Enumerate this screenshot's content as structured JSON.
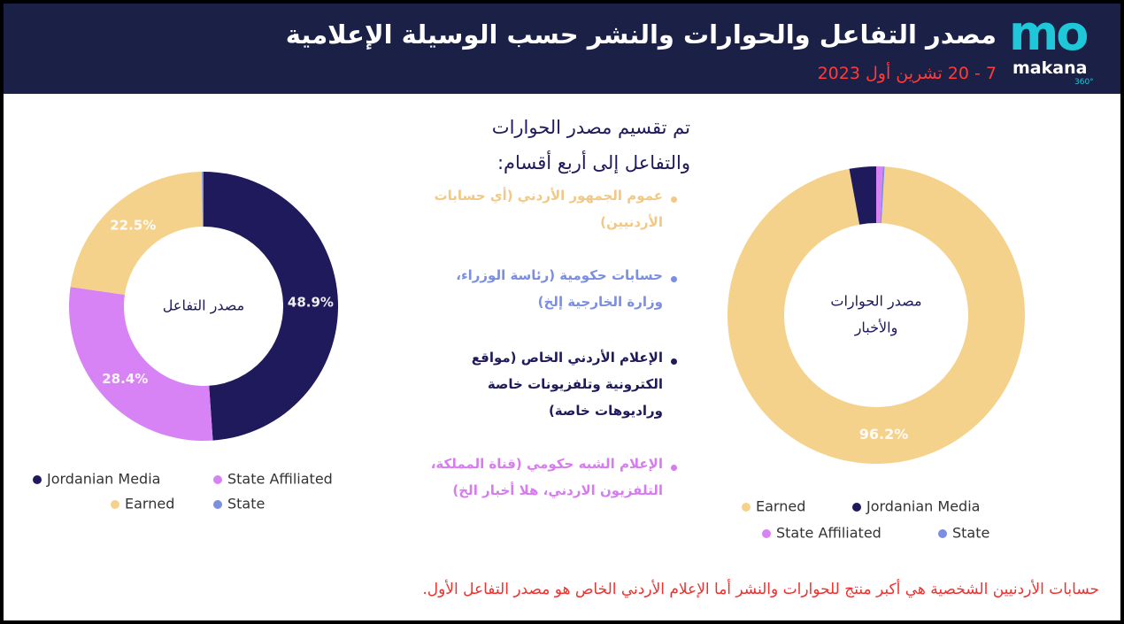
{
  "header": {
    "title": "مصدر التفاعل والحوارات والنشر حسب الوسيلة الإعلامية",
    "date": "7 - 20 تشرين أول 2023",
    "logo": "mo",
    "logo_name": "makana",
    "logo_sub": "360°"
  },
  "intro": {
    "heading": [
      "تم تقسيم مصدر الحوارات",
      "والتفاعل إلى أربع أقسام:"
    ],
    "bullets": [
      {
        "color": "#f1c886",
        "lines": [
          "عموم الجمهور الأردني (أي حسابات",
          "الأردنيين)"
        ]
      },
      {
        "color": "#7b8ee0",
        "lines": [
          "حسابات حكومية (رئاسة الوزراء،",
          "وزارة الخارجية إلخ)"
        ]
      },
      {
        "color": "#1e1a5c",
        "lines": [
          "الإعلام الأردني الخاص (مواقع",
          "الكترونية وتلفزيونات خاصة",
          "وراديوهات خاصة)"
        ]
      },
      {
        "color": "#d77cf0",
        "lines": [
          "الإعلام الشبه حكومي (قناة المملكة،",
          "التلفزيون الاردني، هلا أخبار الخ)"
        ]
      }
    ]
  },
  "chart_data": [
    {
      "type": "pie",
      "donut": true,
      "center_label": [
        "مصدر التفاعل"
      ],
      "categories": [
        "Jordanian Media",
        "State Affiliated",
        "Earned",
        "State"
      ],
      "colors": [
        "#1e1a5c",
        "#d883f5",
        "#f5d28c",
        "#7b8ee0"
      ],
      "values": [
        48.9,
        28.4,
        22.5,
        0.2
      ],
      "value_labels": [
        "48.9%",
        "28.4%",
        "22.5%",
        null
      ]
    },
    {
      "type": "pie",
      "donut": true,
      "center_label": [
        "مصدر الحوارات",
        "والأخبار"
      ],
      "categories": [
        "Earned",
        "Jordanian Media",
        "State Affiliated",
        "State"
      ],
      "colors": [
        "#f5d28c",
        "#1e1a5c",
        "#d883f5",
        "#7b8ee0"
      ],
      "values": [
        96.2,
        2.9,
        0.7,
        0.2
      ],
      "value_labels": [
        "96.2%",
        null,
        null,
        null
      ]
    }
  ],
  "footer": "حسابات الأردنيين الشخصية هي أكبر منتج للحوارات والنشر أما الإعلام الأردني الخاص هو مصدر التفاعل الأول."
}
